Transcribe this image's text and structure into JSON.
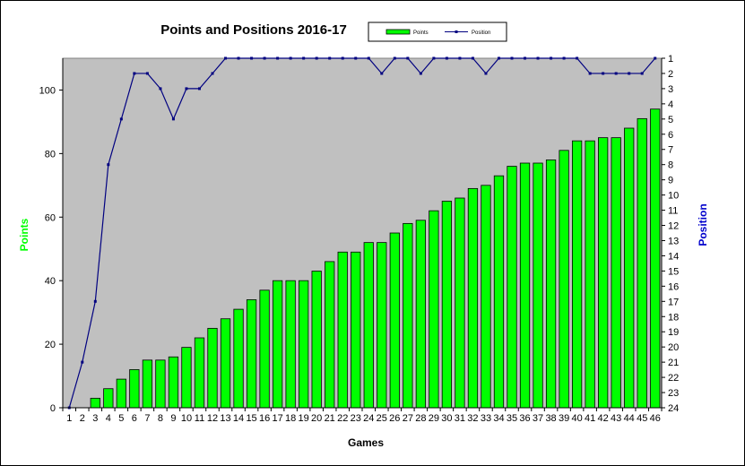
{
  "chart_data": {
    "type": "bar",
    "title": "Points and Positions 2016-17",
    "xlabel": "Games",
    "ylabel": "Points",
    "y2label": "Position",
    "categories": [
      "1",
      "2",
      "3",
      "4",
      "5",
      "6",
      "7",
      "8",
      "9",
      "10",
      "11",
      "12",
      "13",
      "14",
      "15",
      "16",
      "17",
      "18",
      "19",
      "20",
      "21",
      "22",
      "23",
      "24",
      "25",
      "26",
      "27",
      "28",
      "29",
      "30",
      "31",
      "32",
      "33",
      "34",
      "35",
      "36",
      "37",
      "38",
      "39",
      "40",
      "41",
      "42",
      "43",
      "44",
      "45",
      "46"
    ],
    "series": [
      {
        "name": "Points",
        "type": "bar",
        "axis": "left",
        "values": [
          0,
          0,
          3,
          6,
          9,
          12,
          15,
          15,
          16,
          19,
          22,
          25,
          28,
          31,
          34,
          37,
          40,
          40,
          40,
          43,
          46,
          49,
          49,
          52,
          52,
          55,
          58,
          59,
          62,
          65,
          66,
          69,
          70,
          73,
          76,
          77,
          77,
          78,
          81,
          84,
          84,
          85,
          85,
          88,
          91,
          94
        ]
      },
      {
        "name": "Position",
        "type": "line",
        "axis": "right",
        "values": [
          24,
          21,
          17,
          8,
          5,
          2,
          2,
          3,
          5,
          3,
          3,
          2,
          1,
          1,
          1,
          1,
          1,
          1,
          1,
          1,
          1,
          1,
          1,
          1,
          2,
          1,
          1,
          2,
          1,
          1,
          1,
          1,
          2,
          1,
          1,
          1,
          1,
          1,
          1,
          1,
          2,
          2,
          2,
          2,
          2,
          1
        ]
      }
    ],
    "ylim": [
      0,
      110
    ],
    "yticks": [
      0,
      20,
      40,
      60,
      80,
      100
    ],
    "y2range": [
      1,
      24
    ],
    "y2ticks": [
      "1",
      "2",
      "3",
      "4",
      "5",
      "6",
      "7",
      "8",
      "9",
      "10",
      "11",
      "12",
      "13",
      "14",
      "15",
      "16",
      "17",
      "18",
      "19",
      "20",
      "21",
      "22",
      "23",
      "24"
    ],
    "y2_reversed": true,
    "legend_position": "top-right",
    "grid": false,
    "colors": {
      "plot_background": "#c0c0c0",
      "bar_fill": "#00ff00",
      "bar_stroke": "#000000",
      "line": "#000080",
      "left_axis_label": "#00ff00",
      "right_axis_label": "#0000cc"
    }
  }
}
